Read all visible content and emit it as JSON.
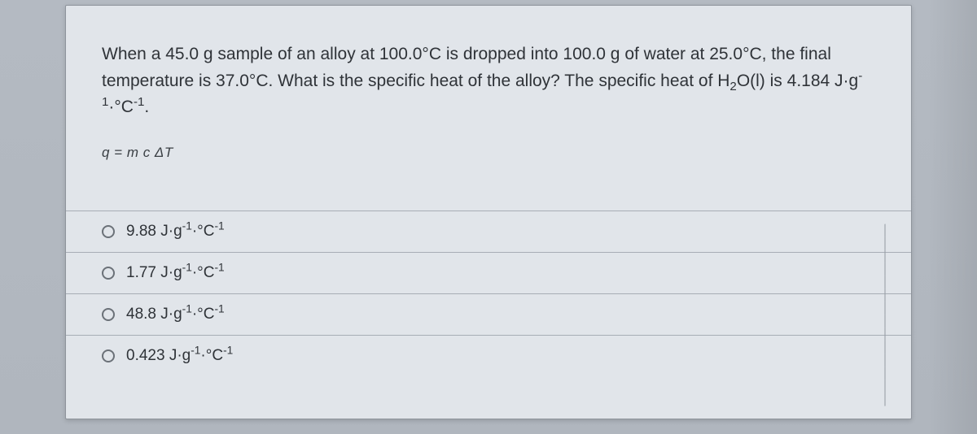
{
  "colors": {
    "page_bg": "#b8bec5",
    "card_bg": "#e1e5ea",
    "border": "#8e949c",
    "divider": "#a7adb5",
    "text": "#2f3338",
    "radio_border": "#6b7178"
  },
  "typography": {
    "question_fontsize_pt": 16,
    "option_fontsize_pt": 14,
    "formula_fontsize_pt": 13,
    "font_family": "sans-serif"
  },
  "question": {
    "text_html": "When a 45.0 g sample of an alloy at 100.0°C is dropped into 100.0 g of water at 25.0°C, the final temperature is 37.0°C.  What is the specific heat of the alloy?  The specific heat of H<sub>2</sub>O(l) is 4.184 J·g<sup>-1</sup>·°C<sup>-1</sup>.",
    "formula_html": "q = m c ΔT"
  },
  "options": [
    {
      "label_html": "9.88 J·g<sup>-1</sup>·°C<sup>-1</sup>"
    },
    {
      "label_html": "1.77 J·g<sup>-1</sup>·°C<sup>-1</sup>"
    },
    {
      "label_html": "48.8 J·g<sup>-1</sup>·°C<sup>-1</sup>"
    },
    {
      "label_html": "0.423 J·g<sup>-1</sup>·°C<sup>-1</sup>"
    }
  ]
}
